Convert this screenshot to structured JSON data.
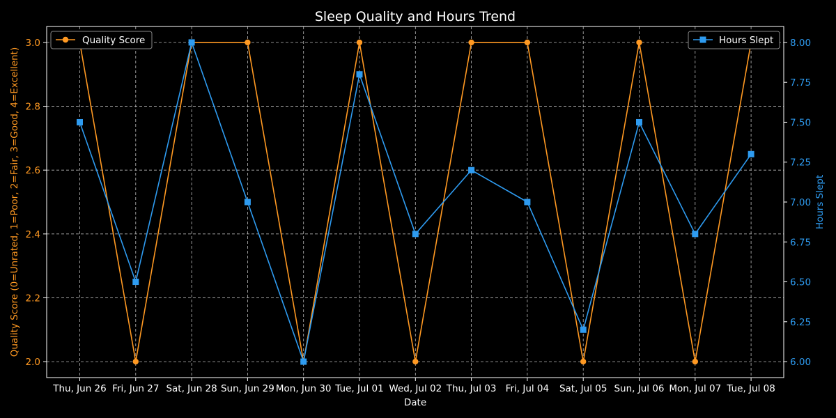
{
  "chart_data": {
    "type": "line",
    "title": "Sleep Quality and Hours Trend",
    "xlabel": "Date",
    "ylabel_left": "Quality Score (0=Unrated, 1=Poor, 2=Fair, 3=Good, 4=Excellent)",
    "ylabel_right": "Hours Slept",
    "categories": [
      "Thu, Jun 26",
      "Fri, Jun 27",
      "Sat, Jun 28",
      "Sun, Jun 29",
      "Mon, Jun 30",
      "Tue, Jul 01",
      "Wed, Jul 02",
      "Thu, Jul 03",
      "Fri, Jul 04",
      "Sat, Jul 05",
      "Sun, Jul 06",
      "Mon, Jul 07",
      "Tue, Jul 08"
    ],
    "series": [
      {
        "name": "Quality Score",
        "axis": "left",
        "color": "#ff9922",
        "marker": "circle",
        "values": [
          3,
          2,
          3,
          3,
          2,
          3,
          2,
          3,
          3,
          2,
          3,
          2,
          3
        ]
      },
      {
        "name": "Hours Slept",
        "axis": "right",
        "color": "#2e9bf0",
        "marker": "square",
        "values": [
          7.5,
          6.5,
          8.0,
          7.0,
          6.0,
          7.8,
          6.8,
          7.2,
          7.0,
          6.2,
          7.5,
          6.8,
          7.3
        ]
      }
    ],
    "ylim_left": [
      1.95,
      3.05
    ],
    "yticks_left": [
      "2.0",
      "2.2",
      "2.4",
      "2.6",
      "2.8",
      "3.0"
    ],
    "ylim_right": [
      5.9,
      8.1
    ],
    "yticks_right": [
      "6.00",
      "6.25",
      "6.50",
      "6.75",
      "7.00",
      "7.25",
      "7.50",
      "7.75",
      "8.00"
    ],
    "grid": true,
    "legend_left_placement": "top-left",
    "legend_right_placement": "top-right",
    "background": "#000000"
  }
}
